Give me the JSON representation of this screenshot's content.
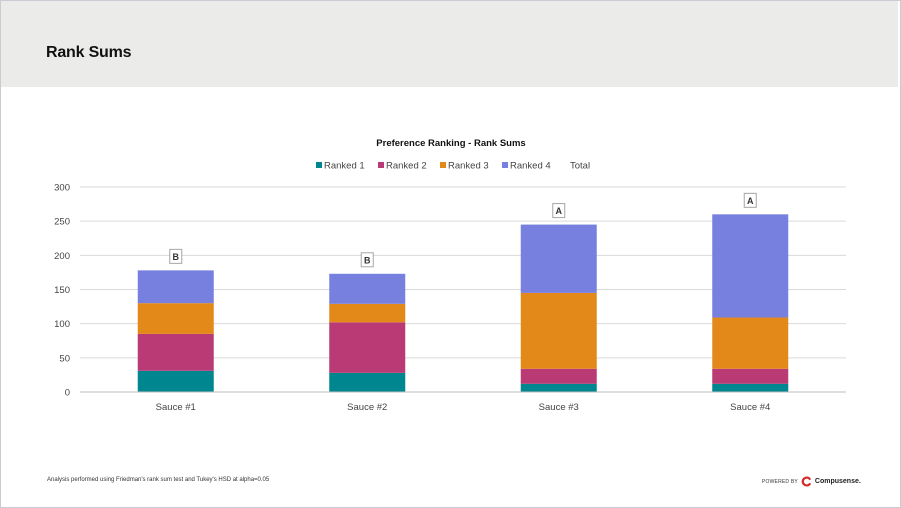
{
  "page": {
    "title": "Rank Sums"
  },
  "footer": {
    "note": "Analysis performed using Friedman's rank sum test and Tukey's HSD at alpha=0.05",
    "powered_by": "POWERED BY",
    "brand": "Compusense."
  },
  "colors": {
    "header_bg": "#ebebea",
    "brand_red": "#d62a2a"
  },
  "chart_data": {
    "type": "bar",
    "stacked": true,
    "title": "Preference Ranking - Rank Sums",
    "categories": [
      "Sauce #1",
      "Sauce #2",
      "Sauce #3",
      "Sauce #4"
    ],
    "series": [
      {
        "name": "Ranked 1",
        "color": "#00868f",
        "values": [
          31,
          28,
          12,
          12
        ]
      },
      {
        "name": "Ranked 2",
        "color": "#b93a74",
        "values": [
          54,
          74,
          22,
          22
        ]
      },
      {
        "name": "Ranked 3",
        "color": "#e2891a",
        "values": [
          45,
          27,
          111,
          75
        ]
      },
      {
        "name": "Ranked 4",
        "color": "#7880df",
        "values": [
          48,
          44,
          100,
          151
        ]
      }
    ],
    "total": {
      "name": "Total",
      "values": [
        178,
        173,
        245,
        260
      ]
    },
    "significance_letters": [
      "B",
      "B",
      "A",
      "A"
    ],
    "ylim": [
      0,
      300
    ],
    "yticks": [
      0,
      50,
      100,
      150,
      200,
      250,
      300
    ],
    "grid": true,
    "legend_position": "top"
  }
}
